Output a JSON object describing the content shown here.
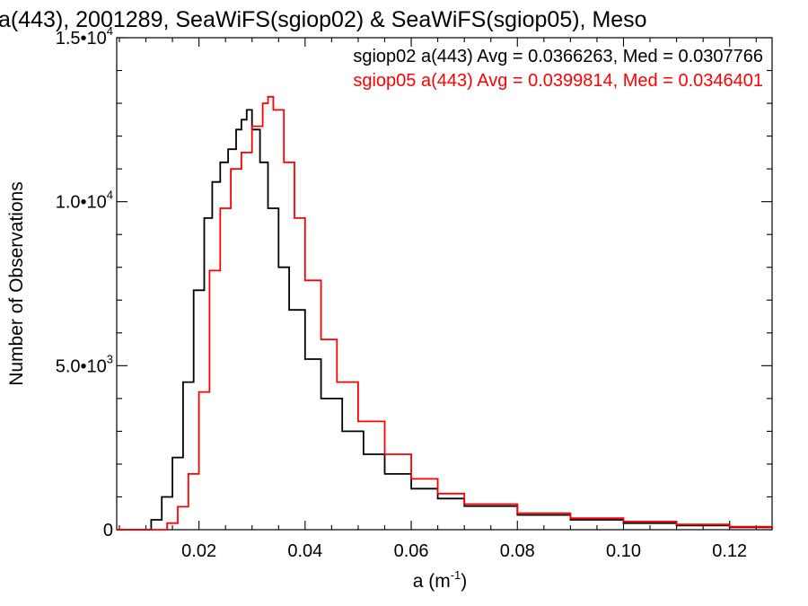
{
  "chart_data": {
    "type": "line",
    "title": "a(443), 2001289, SeaWiFS(sgiop02) & SeaWiFS(sgiop05), Meso",
    "xlabel": "a (m",
    "xlabel_sup": "-1",
    "xlabel_close": ")",
    "ylabel": "Number of Observations",
    "xlim": [
      0.0045,
      0.128
    ],
    "ylim": [
      0,
      15000
    ],
    "grid": false,
    "x_ticks": [
      {
        "value": 0.02,
        "label": "0.02"
      },
      {
        "value": 0.04,
        "label": "0.04"
      },
      {
        "value": 0.06,
        "label": "0.06"
      },
      {
        "value": 0.08,
        "label": "0.08"
      },
      {
        "value": 0.1,
        "label": "0.10"
      },
      {
        "value": 0.12,
        "label": "0.12"
      }
    ],
    "y_ticks": [
      {
        "value": 0,
        "mantissa": "0",
        "exp": ""
      },
      {
        "value": 5000,
        "mantissa": "5.0•10",
        "exp": "3"
      },
      {
        "value": 10000,
        "mantissa": "1.0•10",
        "exp": "4"
      },
      {
        "value": 15000,
        "mantissa": "1.5•10",
        "exp": "4"
      }
    ],
    "legend_placement": "top-right",
    "series": [
      {
        "name": "sgiop02",
        "legend_text": "sgiop02 a(443) Avg = 0.0366263, Med = 0.0307766",
        "color": "#000000",
        "x": [
          0.0045,
          0.0095,
          0.011,
          0.013,
          0.015,
          0.017,
          0.019,
          0.021,
          0.0225,
          0.024,
          0.0255,
          0.027,
          0.028,
          0.029,
          0.03,
          0.0315,
          0.033,
          0.035,
          0.037,
          0.04,
          0.043,
          0.047,
          0.051,
          0.055,
          0.06,
          0.065,
          0.07,
          0.08,
          0.09,
          0.1,
          0.11,
          0.12,
          0.128
        ],
        "y": [
          0,
          0,
          300,
          1000,
          2200,
          4500,
          7300,
          9500,
          10600,
          11200,
          11600,
          12200,
          12500,
          12800,
          12200,
          11200,
          9800,
          8000,
          6700,
          5200,
          4000,
          3000,
          2300,
          1700,
          1250,
          950,
          720,
          450,
          300,
          200,
          130,
          70,
          30
        ]
      },
      {
        "name": "sgiop05",
        "legend_text": "sgiop05 a(443) Avg = 0.0399814, Med = 0.0346401",
        "color": "#ff0000",
        "x": [
          0.0045,
          0.0125,
          0.014,
          0.016,
          0.018,
          0.02,
          0.022,
          0.024,
          0.026,
          0.028,
          0.03,
          0.032,
          0.033,
          0.034,
          0.036,
          0.038,
          0.04,
          0.043,
          0.046,
          0.05,
          0.055,
          0.06,
          0.065,
          0.07,
          0.08,
          0.09,
          0.1,
          0.11,
          0.12,
          0.128
        ],
        "y": [
          0,
          0,
          200,
          700,
          1700,
          4200,
          7900,
          9800,
          11000,
          11500,
          12300,
          13000,
          13200,
          12800,
          11200,
          9500,
          7600,
          5800,
          4500,
          3300,
          2300,
          1550,
          1100,
          780,
          500,
          350,
          250,
          160,
          90,
          40
        ]
      }
    ]
  }
}
